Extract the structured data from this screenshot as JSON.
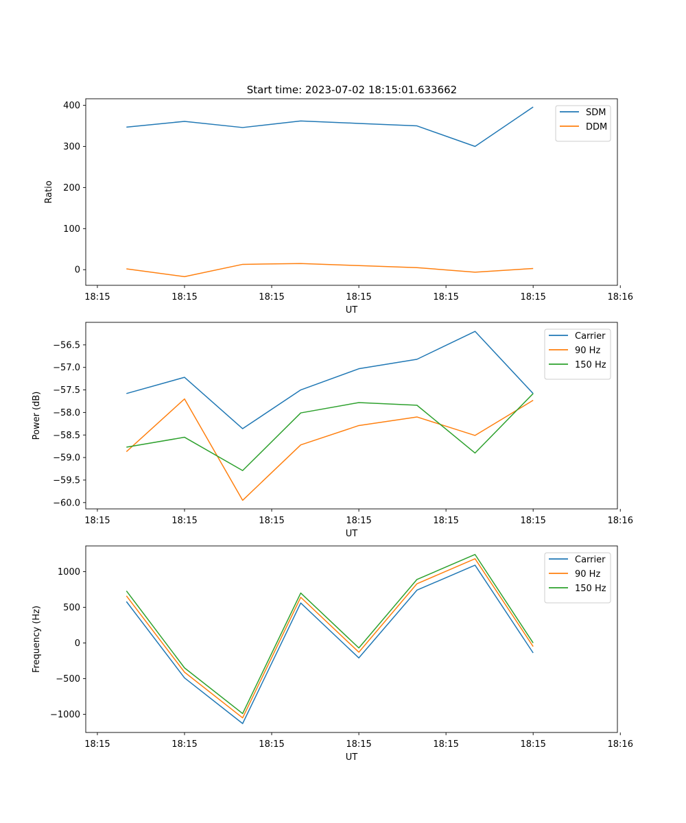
{
  "figure": {
    "title": "Start time: 2023-07-02 18:15:01.633662"
  },
  "chart_data": [
    {
      "type": "line",
      "title": "Start time: 2023-07-02 18:15:01.633662",
      "xlabel": "UT",
      "ylabel": "Ratio",
      "x": [
        1,
        2,
        3,
        4,
        5,
        6,
        7,
        8
      ],
      "xlim": [
        0.3,
        9.45
      ],
      "xticks": [
        0.5,
        2,
        3.5,
        5,
        6.5,
        8,
        9.5
      ],
      "xticklabels": [
        "18:15",
        "18:15",
        "18:15",
        "18:15",
        "18:15",
        "18:15",
        "18:16"
      ],
      "ylim": [
        -38,
        416
      ],
      "yticks": [
        0,
        100,
        200,
        300,
        400
      ],
      "yticklabels": [
        "0",
        "100",
        "200",
        "300",
        "400"
      ],
      "legend": "top-right",
      "series": [
        {
          "name": "SDM",
          "color": "#1f77b4",
          "values": [
            347,
            361,
            346,
            362,
            356,
            350,
            300,
            396
          ]
        },
        {
          "name": "DDM",
          "color": "#ff7f0e",
          "values": [
            2,
            -17,
            13,
            15,
            10,
            5,
            -6,
            3
          ]
        }
      ]
    },
    {
      "type": "line",
      "title": "",
      "xlabel": "UT",
      "ylabel": "Power (dB)",
      "x": [
        1,
        2,
        3,
        4,
        5,
        6,
        7,
        8
      ],
      "xlim": [
        0.3,
        9.45
      ],
      "xticks": [
        0.5,
        2,
        3.5,
        5,
        6.5,
        8,
        9.5
      ],
      "xticklabels": [
        "18:15",
        "18:15",
        "18:15",
        "18:15",
        "18:15",
        "18:15",
        "18:16"
      ],
      "ylim": [
        -60.14,
        -56.0
      ],
      "yticks": [
        -60.0,
        -59.5,
        -59.0,
        -58.5,
        -58.0,
        -57.5,
        -57.0,
        -56.5
      ],
      "yticklabels": [
        "−60.0",
        "−59.5",
        "−59.0",
        "−58.5",
        "−58.0",
        "−57.5",
        "−57.0",
        "−56.5"
      ],
      "legend": "top-right",
      "series": [
        {
          "name": "Carrier",
          "color": "#1f77b4",
          "values": [
            -57.58,
            -57.22,
            -58.36,
            -57.5,
            -57.03,
            -56.82,
            -56.2,
            -57.58
          ]
        },
        {
          "name": "90 Hz",
          "color": "#ff7f0e",
          "values": [
            -58.87,
            -57.7,
            -59.95,
            -58.72,
            -58.29,
            -58.1,
            -58.51,
            -57.73
          ]
        },
        {
          "name": "150 Hz",
          "color": "#2ca02c",
          "values": [
            -58.77,
            -58.55,
            -59.29,
            -58.01,
            -57.78,
            -57.84,
            -58.9,
            -57.58
          ]
        }
      ]
    },
    {
      "type": "line",
      "title": "",
      "xlabel": "UT",
      "ylabel": "Frequency (Hz)",
      "x": [
        1,
        2,
        3,
        4,
        5,
        6,
        7,
        8
      ],
      "xlim": [
        0.3,
        9.45
      ],
      "xticks": [
        0.5,
        2,
        3.5,
        5,
        6.5,
        8,
        9.5
      ],
      "xticklabels": [
        "18:15",
        "18:15",
        "18:15",
        "18:15",
        "18:15",
        "18:15",
        "18:16"
      ],
      "ylim": [
        -1255,
        1360
      ],
      "yticks": [
        -1000,
        -500,
        0,
        500,
        1000
      ],
      "yticklabels": [
        "−1000",
        "−500",
        "0",
        "500",
        "1000"
      ],
      "legend": "top-right",
      "series": [
        {
          "name": "Carrier",
          "color": "#1f77b4",
          "values": [
            580,
            -490,
            -1130,
            560,
            -210,
            740,
            1090,
            -140
          ]
        },
        {
          "name": "90 Hz",
          "color": "#ff7f0e",
          "values": [
            660,
            -410,
            -1050,
            640,
            -130,
            830,
            1180,
            -50
          ]
        },
        {
          "name": "150 Hz",
          "color": "#2ca02c",
          "values": [
            730,
            -350,
            -990,
            700,
            -70,
            890,
            1240,
            0
          ]
        }
      ]
    }
  ]
}
